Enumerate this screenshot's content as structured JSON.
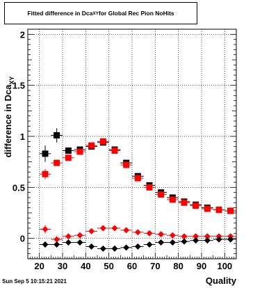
{
  "header": {
    "title_main": "Fitted difference in Dca",
    "title_sub": "XY",
    "title_rest": " for Global Rec Pion NoHits"
  },
  "footer": {
    "timestamp": "Sun Sep  5 10:15:21 2021"
  },
  "chart_data": {
    "type": "scatter",
    "xlabel": "Quality",
    "ylabel_main": "difference in Dca",
    "ylabel_sub": "XY",
    "xlim": [
      15,
      105
    ],
    "ylim": [
      -0.2,
      2.05
    ],
    "x_ticks": [
      20,
      30,
      40,
      50,
      60,
      70,
      80,
      90,
      100
    ],
    "y_ticks": [
      0,
      0.5,
      1,
      1.5,
      2
    ],
    "y_tick_labels": [
      "0",
      "0.5",
      "1",
      "1.5",
      "2"
    ],
    "grid": true,
    "series": [
      {
        "marker": "square",
        "color": "#000000",
        "x": [
          22.5,
          27.5,
          32.5,
          37.5,
          42.5,
          47.5,
          52.5,
          57.5,
          62.5,
          67.5,
          72.5,
          77.5,
          82.5,
          87.5,
          92.5,
          97.5,
          102.5
        ],
        "y": [
          0.83,
          1.01,
          0.86,
          0.87,
          0.9,
          0.94,
          0.87,
          0.74,
          0.61,
          0.52,
          0.45,
          0.4,
          0.36,
          0.33,
          0.3,
          0.28,
          0.27
        ],
        "err": [
          0.08,
          0.07,
          0.03,
          0.02,
          0.02,
          0.02,
          0.02,
          0.02,
          0.02,
          0.02,
          0.02,
          0.02,
          0.02,
          0.02,
          0.01,
          0.01,
          0.01
        ]
      },
      {
        "marker": "square",
        "color": "#ff0000",
        "x": [
          22.5,
          27.5,
          32.5,
          37.5,
          42.5,
          47.5,
          52.5,
          57.5,
          62.5,
          67.5,
          72.5,
          77.5,
          82.5,
          87.5,
          92.5,
          97.5,
          102.5
        ],
        "y": [
          0.63,
          0.74,
          0.79,
          0.85,
          0.91,
          0.95,
          0.86,
          0.72,
          0.59,
          0.5,
          0.43,
          0.38,
          0.35,
          0.32,
          0.29,
          0.28,
          0.27
        ],
        "err": [
          0.05,
          0.03,
          0.02,
          0.02,
          0.02,
          0.02,
          0.02,
          0.02,
          0.02,
          0.02,
          0.02,
          0.02,
          0.01,
          0.01,
          0.01,
          0.01,
          0.01
        ]
      },
      {
        "marker": "diamond",
        "color": "#ff0000",
        "x": [
          22.5,
          27.5,
          32.5,
          37.5,
          42.5,
          47.5,
          52.5,
          57.5,
          62.5,
          67.5,
          72.5,
          77.5,
          82.5,
          87.5,
          92.5,
          97.5,
          102.5
        ],
        "y": [
          0.09,
          -0.01,
          0.02,
          0.03,
          0.07,
          0.1,
          0.1,
          0.08,
          0.06,
          0.05,
          0.04,
          0.03,
          0.02,
          0.02,
          0.02,
          0.02,
          0.02
        ],
        "err": [
          0.04,
          0.02,
          0.01,
          0.01,
          0.01,
          0.01,
          0.01,
          0.01,
          0.01,
          0.01,
          0.01,
          0.01,
          0.01,
          0.01,
          0.01,
          0.01,
          0.01
        ]
      },
      {
        "marker": "diamond",
        "color": "#000000",
        "x": [
          22.5,
          27.5,
          32.5,
          37.5,
          42.5,
          47.5,
          52.5,
          57.5,
          62.5,
          67.5,
          72.5,
          77.5,
          82.5,
          87.5,
          92.5,
          97.5,
          102.5
        ],
        "y": [
          -0.06,
          -0.06,
          -0.04,
          -0.04,
          -0.08,
          -0.1,
          -0.1,
          -0.09,
          -0.08,
          -0.06,
          -0.04,
          -0.04,
          -0.03,
          -0.02,
          -0.02,
          -0.01,
          -0.01
        ],
        "err": [
          0.03,
          0.02,
          0.01,
          0.01,
          0.01,
          0.01,
          0.01,
          0.01,
          0.01,
          0.01,
          0.01,
          0.01,
          0.01,
          0.01,
          0.01,
          0.01,
          0.01
        ]
      }
    ]
  }
}
